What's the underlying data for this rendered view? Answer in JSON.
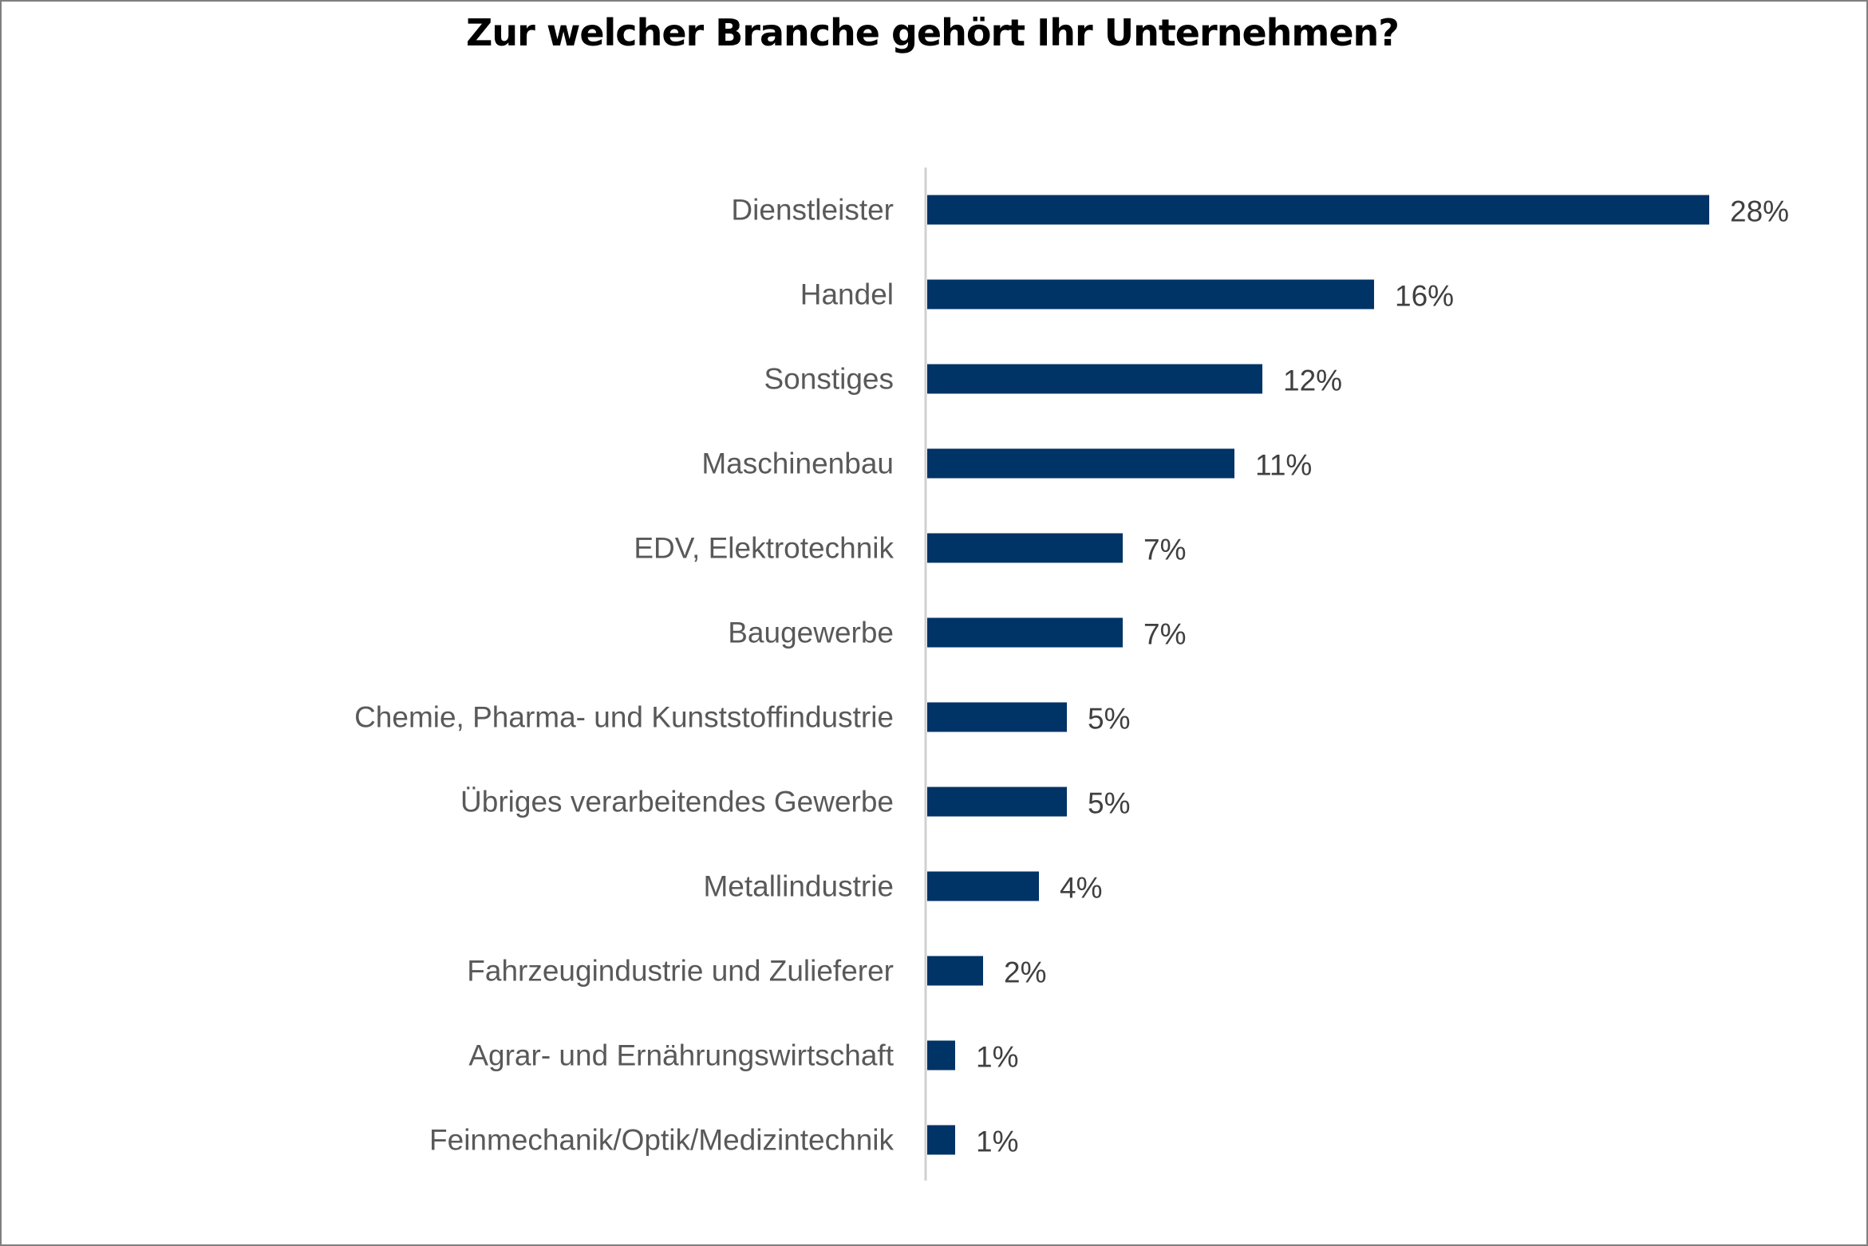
{
  "chart_data": {
    "type": "bar",
    "orientation": "horizontal",
    "title": "Zur welcher Branche gehört Ihr Unternehmen?",
    "categories": [
      "Dienstleister",
      "Handel",
      "Sonstiges",
      "Maschinenbau",
      "EDV, Elektrotechnik",
      "Baugewerbe",
      "Chemie, Pharma- und Kunststoffindustrie",
      "Übriges verarbeitendes Gewerbe",
      "Metallindustrie",
      "Fahrzeugindustrie und Zulieferer",
      "Agrar- und Ernährungswirtschaft",
      "Feinmechanik/Optik/Medizintechnik"
    ],
    "values": [
      28,
      16,
      12,
      11,
      7,
      7,
      5,
      5,
      4,
      2,
      1,
      1
    ],
    "data_labels": [
      "28%",
      "16%",
      "12%",
      "11%",
      "7%",
      "7%",
      "5%",
      "5%",
      "4%",
      "2%",
      "1%",
      "1%"
    ],
    "xlim": [
      0,
      28
    ],
    "grid": false,
    "legend": "none",
    "bar_color": "#003366"
  }
}
